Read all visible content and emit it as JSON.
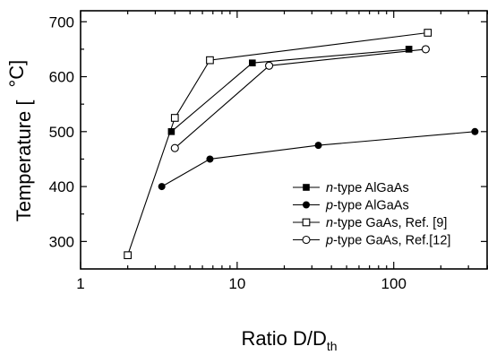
{
  "chart_data": {
    "type": "line",
    "title": "",
    "xlabel_main": "Ratio D/D",
    "xlabel_sub": "th",
    "ylabel_main": "Temperature [",
    "ylabel_unit": "°C]",
    "x_scale": "log",
    "xlim": [
      1,
      400
    ],
    "ylim": [
      250,
      720
    ],
    "x_ticks": [
      1,
      10,
      100
    ],
    "x_tick_labels": [
      "1",
      "10",
      "100"
    ],
    "y_ticks": [
      300,
      400,
      500,
      600,
      700
    ],
    "y_tick_labels": [
      "300",
      "400",
      "500",
      "600",
      "700"
    ],
    "grid": false,
    "legend_position": "center-right",
    "series": [
      {
        "name": "n-type AlGaAs",
        "name_italic": "n",
        "name_rest": "-type AlGaAs",
        "marker": "filled-square",
        "x": [
          3.8,
          12.5,
          125
        ],
        "y": [
          500,
          625,
          650
        ]
      },
      {
        "name": "p-type AlGaAs",
        "name_italic": "p",
        "name_rest": "-type AlGaAs",
        "marker": "filled-circle",
        "x": [
          3.3,
          6.7,
          33,
          330
        ],
        "y": [
          400,
          450,
          475,
          500
        ]
      },
      {
        "name": "n-type GaAs, Ref. [9]",
        "name_italic": "n",
        "name_rest": "-type GaAs, Ref. [9]",
        "marker": "open-square",
        "x": [
          2,
          4,
          6.7,
          165
        ],
        "y": [
          275,
          525,
          630,
          680
        ]
      },
      {
        "name": "p-type GaAs, Ref.[12]",
        "name_italic": "p",
        "name_rest": "-type GaAs, Ref.[12]",
        "marker": "open-circle",
        "x": [
          4,
          16,
          160
        ],
        "y": [
          470,
          620,
          650
        ]
      }
    ]
  }
}
